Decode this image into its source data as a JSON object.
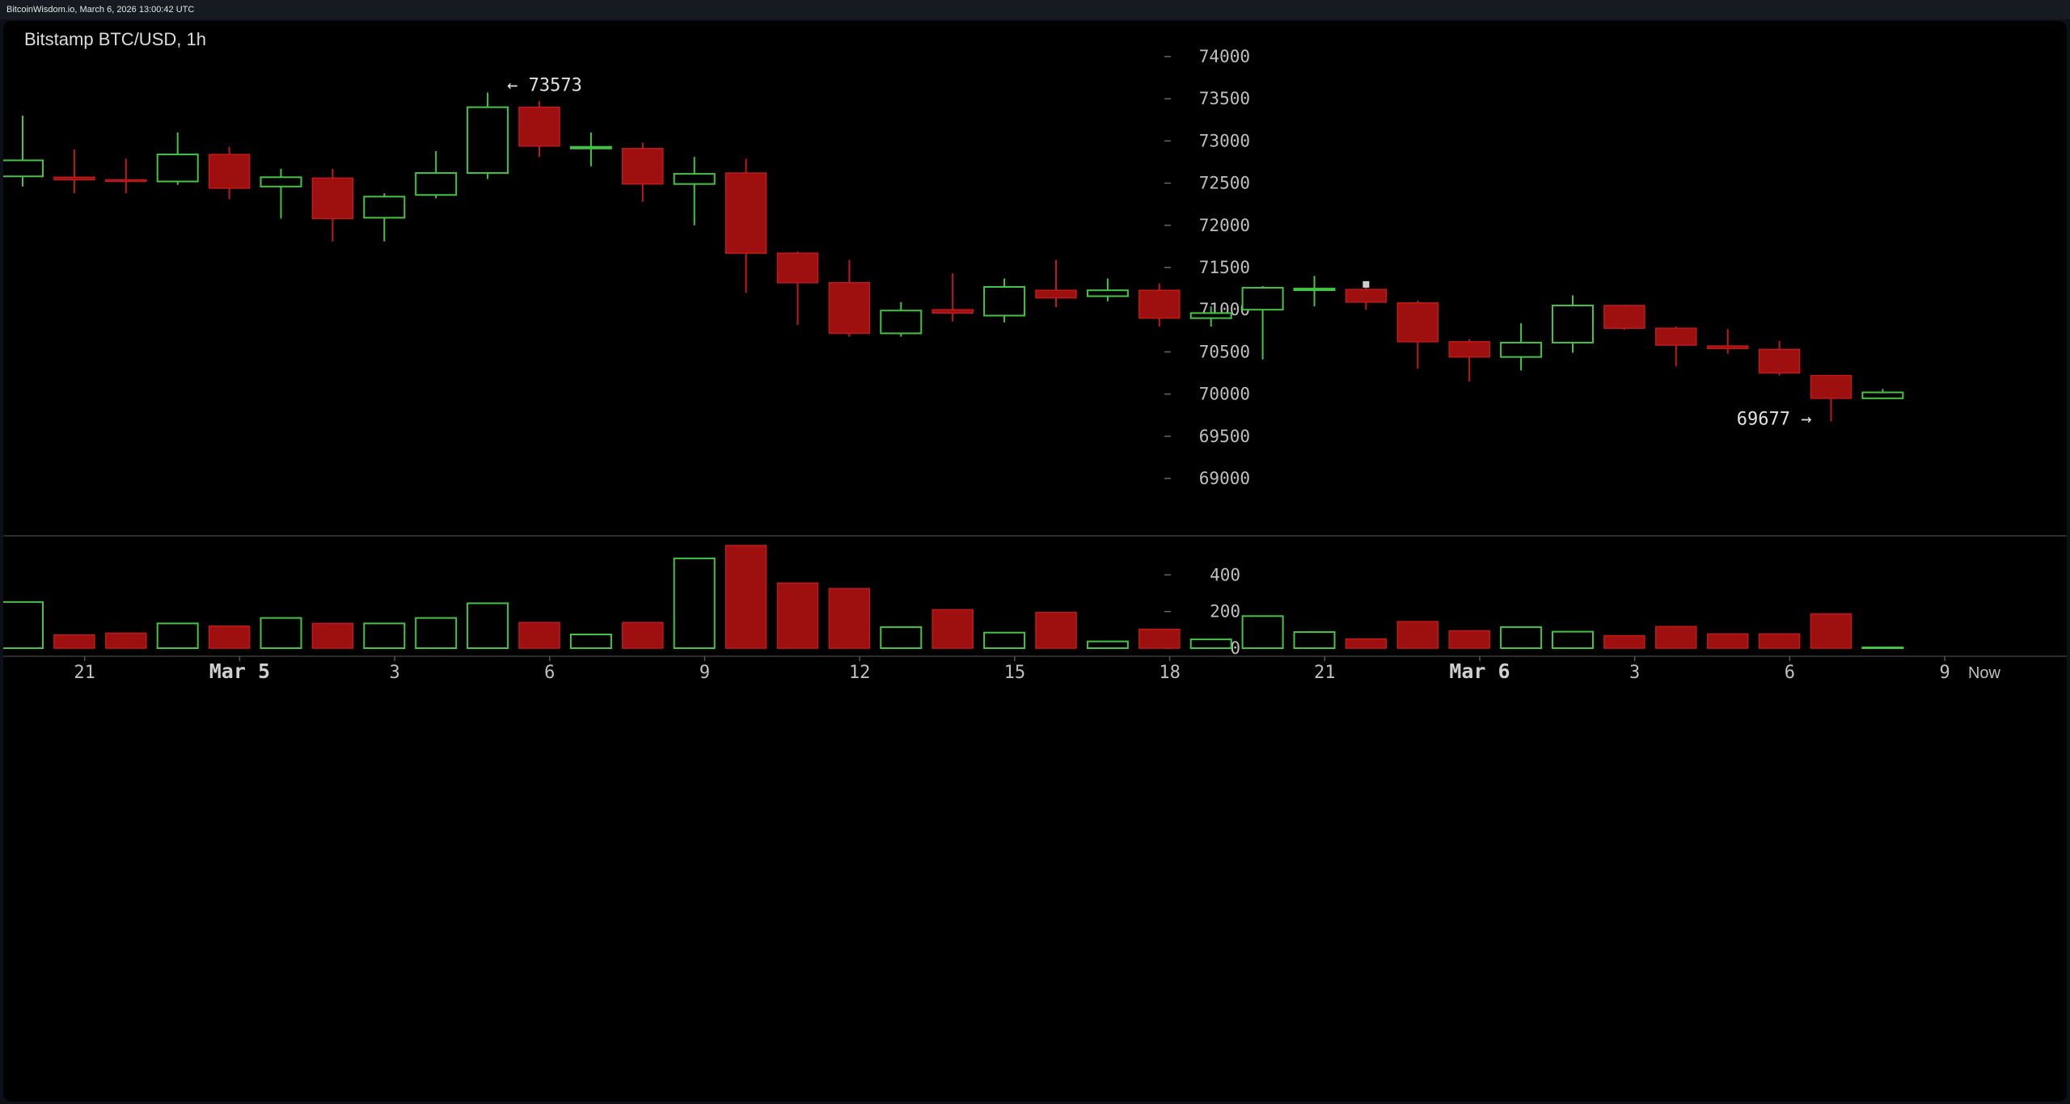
{
  "header": {
    "text": "BitcoinWisdom.io, March 6, 2026 13:00:42 UTC"
  },
  "chart_title": "Bitstamp BTC/USD, 1h",
  "chart_data": {
    "type": "candlestick",
    "exchange": "Bitstamp",
    "pair": "BTC/USD",
    "interval": "1h",
    "ylim": [
      68600,
      74300
    ],
    "yticks": [
      69000,
      69500,
      70000,
      70500,
      71000,
      71500,
      72000,
      72500,
      73000,
      73500,
      74000
    ],
    "volume_ylim": [
      0,
      560
    ],
    "volume_ticks": [
      0,
      200,
      400
    ],
    "x_labels": [
      {
        "label": "21",
        "index": 1.2,
        "bold": false
      },
      {
        "label": "Mar 5",
        "index": 4.2,
        "bold": true
      },
      {
        "label": "3",
        "index": 7.2,
        "bold": false
      },
      {
        "label": "6",
        "index": 10.2,
        "bold": false
      },
      {
        "label": "9",
        "index": 13.2,
        "bold": false
      },
      {
        "label": "12",
        "index": 16.2,
        "bold": false
      },
      {
        "label": "15",
        "index": 19.2,
        "bold": false
      },
      {
        "label": "18",
        "index": 22.2,
        "bold": false
      },
      {
        "label": "21",
        "index": 25.2,
        "bold": false
      },
      {
        "label": "Mar 6",
        "index": 28.2,
        "bold": true
      },
      {
        "label": "3",
        "index": 31.2,
        "bold": false
      },
      {
        "label": "6",
        "index": 34.2,
        "bold": false
      },
      {
        "label": "9",
        "index": 37.2,
        "bold": false
      }
    ],
    "now_label": "Now",
    "annotations": [
      {
        "text": "← 73573",
        "candle": 9,
        "price": 73573,
        "side": "right"
      },
      {
        "text": "69677 →",
        "candle": 35,
        "price": 69677,
        "side": "left"
      }
    ],
    "candles": [
      {
        "o": 72580,
        "h": 73300,
        "l": 72460,
        "c": 72770,
        "v": 252
      },
      {
        "o": 72570,
        "h": 72900,
        "l": 72380,
        "c": 72540,
        "v": 72
      },
      {
        "o": 72540,
        "h": 72790,
        "l": 72380,
        "c": 72530,
        "v": 82
      },
      {
        "o": 72520,
        "h": 73100,
        "l": 72480,
        "c": 72840,
        "v": 135
      },
      {
        "o": 72840,
        "h": 72930,
        "l": 72310,
        "c": 72440,
        "v": 120
      },
      {
        "o": 72460,
        "h": 72670,
        "l": 72080,
        "c": 72570,
        "v": 165
      },
      {
        "o": 72560,
        "h": 72670,
        "l": 71810,
        "c": 72080,
        "v": 135
      },
      {
        "o": 72090,
        "h": 72380,
        "l": 71810,
        "c": 72340,
        "v": 135
      },
      {
        "o": 72360,
        "h": 72880,
        "l": 72320,
        "c": 72620,
        "v": 165
      },
      {
        "o": 72620,
        "h": 73573,
        "l": 72550,
        "c": 73400,
        "v": 245
      },
      {
        "o": 73400,
        "h": 73470,
        "l": 72810,
        "c": 72940,
        "v": 140
      },
      {
        "o": 72930,
        "h": 73100,
        "l": 72700,
        "c": 72930,
        "v": 75
      },
      {
        "o": 72910,
        "h": 72980,
        "l": 72280,
        "c": 72490,
        "v": 140
      },
      {
        "o": 72490,
        "h": 72810,
        "l": 72000,
        "c": 72610,
        "v": 490
      },
      {
        "o": 72620,
        "h": 72790,
        "l": 71200,
        "c": 71670,
        "v": 560
      },
      {
        "o": 71670,
        "h": 71690,
        "l": 70820,
        "c": 71320,
        "v": 355
      },
      {
        "o": 71320,
        "h": 71590,
        "l": 70680,
        "c": 70720,
        "v": 325
      },
      {
        "o": 70720,
        "h": 71090,
        "l": 70680,
        "c": 70990,
        "v": 115
      },
      {
        "o": 71000,
        "h": 71430,
        "l": 70860,
        "c": 70960,
        "v": 210
      },
      {
        "o": 70930,
        "h": 71370,
        "l": 70850,
        "c": 71270,
        "v": 85
      },
      {
        "o": 71230,
        "h": 71590,
        "l": 71030,
        "c": 71140,
        "v": 195
      },
      {
        "o": 71160,
        "h": 71370,
        "l": 71100,
        "c": 71230,
        "v": 37
      },
      {
        "o": 71230,
        "h": 71310,
        "l": 70800,
        "c": 70900,
        "v": 103
      },
      {
        "o": 70900,
        "h": 71040,
        "l": 70800,
        "c": 70960,
        "v": 48
      },
      {
        "o": 71000,
        "h": 71280,
        "l": 70410,
        "c": 71260,
        "v": 175
      },
      {
        "o": 71250,
        "h": 71400,
        "l": 71040,
        "c": 71250,
        "v": 88
      },
      {
        "o": 71240,
        "h": 71300,
        "l": 71000,
        "c": 71090,
        "v": 50
      },
      {
        "o": 71080,
        "h": 71110,
        "l": 70300,
        "c": 70620,
        "v": 145
      },
      {
        "o": 70620,
        "h": 70650,
        "l": 70150,
        "c": 70440,
        "v": 95
      },
      {
        "o": 70440,
        "h": 70840,
        "l": 70280,
        "c": 70610,
        "v": 115
      },
      {
        "o": 70610,
        "h": 71170,
        "l": 70490,
        "c": 71050,
        "v": 90
      },
      {
        "o": 71050,
        "h": 71060,
        "l": 70760,
        "c": 70780,
        "v": 68
      },
      {
        "o": 70780,
        "h": 70800,
        "l": 70330,
        "c": 70580,
        "v": 118
      },
      {
        "o": 70570,
        "h": 70770,
        "l": 70480,
        "c": 70540,
        "v": 78
      },
      {
        "o": 70530,
        "h": 70630,
        "l": 70220,
        "c": 70250,
        "v": 78
      },
      {
        "o": 70220,
        "h": 70230,
        "l": 69677,
        "c": 69950,
        "v": 187
      },
      {
        "o": 69950,
        "h": 70060,
        "l": 69940,
        "c": 70020,
        "v": 3
      }
    ]
  }
}
